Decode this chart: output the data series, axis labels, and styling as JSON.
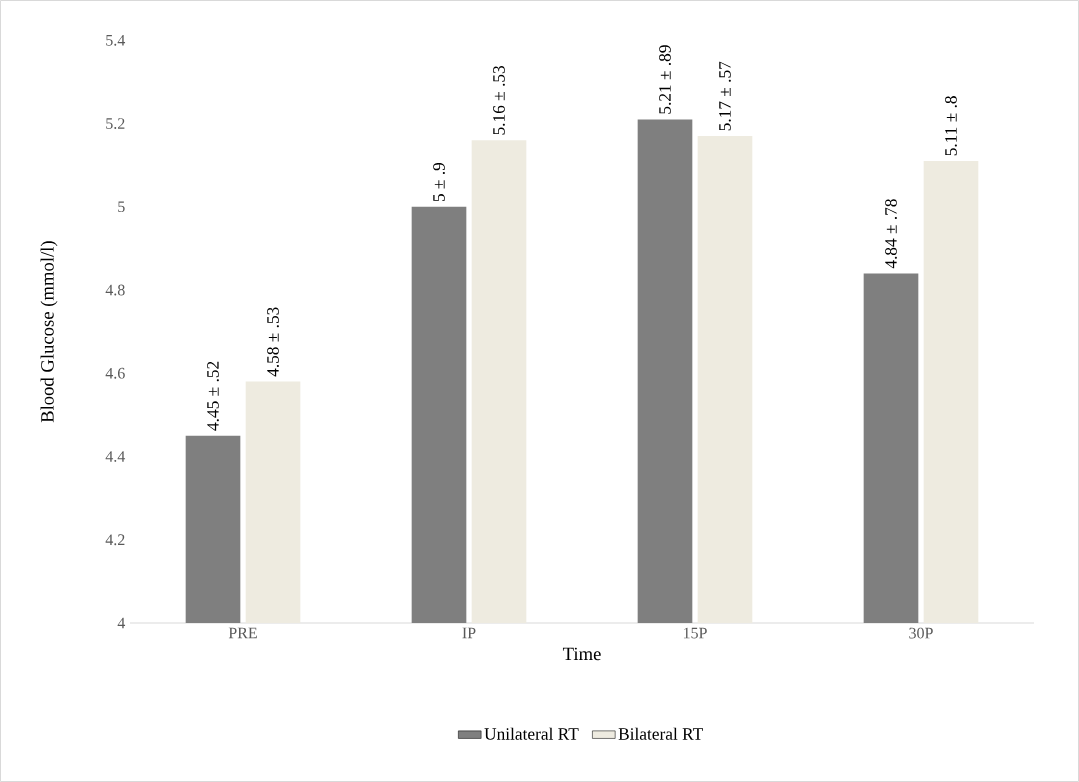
{
  "chart_data": {
    "type": "bar",
    "xlabel": "Time",
    "ylabel": "Blood Glucose (mmol/l)",
    "categories": [
      "PRE",
      "IP",
      "15P",
      "30P"
    ],
    "series": [
      {
        "name": "Unilateral RT",
        "color": "#7f7f7f",
        "values": [
          4.45,
          5,
          5.21,
          4.84
        ],
        "value_labels": [
          "4.45 ± .52",
          "5 ± .9",
          "5.21 ± .89",
          "4.84 ± .78"
        ]
      },
      {
        "name": "Bilateral RT",
        "color": "#eeebe0",
        "values": [
          4.58,
          5.16,
          5.17,
          5.11
        ],
        "value_labels": [
          "4.58 ± .53",
          "5.16 ± .53",
          "5.17 ± .57",
          "5.11 ± .8"
        ]
      }
    ],
    "ylim": [
      4,
      5.4
    ],
    "yticks": [
      4,
      4.2,
      4.4,
      4.6,
      4.8,
      5,
      5.2,
      5.4
    ],
    "legend": "bottom"
  }
}
